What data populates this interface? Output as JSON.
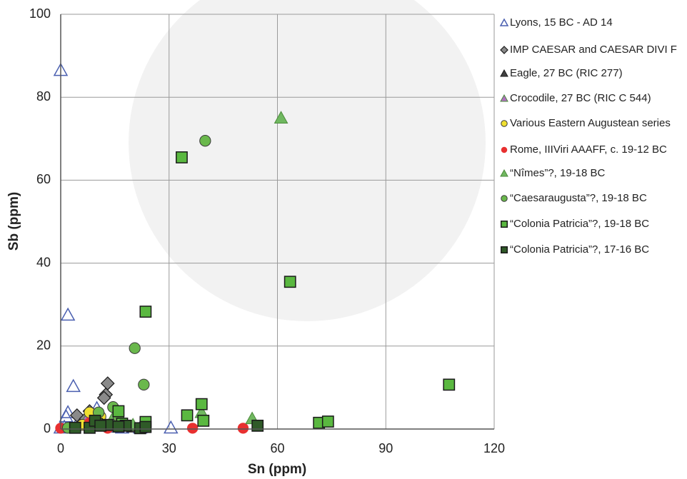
{
  "chart_data": {
    "type": "scatter",
    "x_label": "Sn (ppm)",
    "y_label": "Sb (ppm)",
    "xlim": [
      0,
      120
    ],
    "ylim": [
      0,
      100
    ],
    "xticks": [
      0,
      30,
      60,
      90,
      120
    ],
    "yticks": [
      0,
      20,
      40,
      60,
      80,
      100
    ],
    "grid": true,
    "legend_position": "right",
    "series": [
      {
        "name": "Lyons, 15 BC - AD 14",
        "marker": "triangle-open",
        "color": "#4a5fb0",
        "x": [
          0,
          2,
          3.5,
          2,
          1.5,
          30.5,
          22,
          17,
          10,
          5,
          1,
          14,
          0
        ],
        "values": [
          86.5,
          27.5,
          10.3,
          4,
          3,
          0.3,
          0.3,
          0.3,
          5,
          2,
          0.5,
          0.5,
          0.3
        ]
      },
      {
        "name": "IMP CAESAR and CAESAR DIVI F",
        "marker": "diamond",
        "color": "#8a8a8a",
        "x": [
          13,
          12.5,
          4.5,
          8,
          12,
          7
        ],
        "values": [
          11,
          8.3,
          3.3,
          4.3,
          7.5,
          2.5
        ]
      },
      {
        "name": "Eagle, 27 BC (RIC 277)",
        "marker": "triangle",
        "color": "#404040",
        "x": [
          9,
          20
        ],
        "values": [
          3.5,
          0.5
        ]
      },
      {
        "name": "Crocodile, 27 BC (RIC C 544)",
        "marker": "triangle",
        "color": "#b070c0",
        "x": [
          7,
          11
        ],
        "values": [
          2,
          1.5
        ]
      },
      {
        "name": "Various Eastern Augustean series",
        "marker": "circle",
        "color": "#f0e030",
        "x": [
          8,
          11,
          6
        ],
        "values": [
          4,
          3,
          1
        ]
      },
      {
        "name": "Rome, IIIViri AAAFF, c. 19-12 BC",
        "marker": "circle-solid",
        "color": "#e83030",
        "x": [
          0,
          36.5,
          50.5,
          13,
          8
        ],
        "values": [
          0.2,
          0.2,
          0.2,
          0.2,
          1.5
        ]
      },
      {
        "name": "“Nîmes”?, 19-18 BC",
        "marker": "triangle",
        "color": "#70b860",
        "x": [
          61,
          53,
          39,
          20,
          15
        ],
        "values": [
          75,
          2.5,
          4,
          1,
          3.5
        ]
      },
      {
        "name": "“Caesaraugusta”?, 19-18 BC",
        "marker": "circle",
        "color": "#6ab84c",
        "x": [
          40,
          20.5,
          23,
          14.5,
          10.5,
          2,
          16
        ],
        "values": [
          69.5,
          19.5,
          10.7,
          5.3,
          4,
          0.3,
          3
        ]
      },
      {
        "name": "“Colonia Patricia”?, 19-18 BC",
        "marker": "square",
        "color": "#5ab840",
        "x": [
          33.5,
          63.5,
          23.5,
          107.5,
          39,
          35,
          39.5,
          71.5,
          74,
          23.5,
          16,
          17,
          10
        ],
        "values": [
          65.5,
          35.5,
          28.3,
          10.7,
          6,
          3.3,
          2,
          1.5,
          1.8,
          1.7,
          4.3,
          1.3,
          1.2
        ]
      },
      {
        "name": "“Colonia Patricia”?, 17-16 BC",
        "marker": "square",
        "color": "#2f5a28",
        "x": [
          54.5,
          18,
          22,
          23.5,
          13,
          8,
          4,
          9.5,
          16,
          11
        ],
        "values": [
          0.8,
          0.8,
          0.2,
          0.5,
          1,
          0.3,
          0.3,
          2,
          0.6,
          0.8
        ]
      }
    ]
  }
}
